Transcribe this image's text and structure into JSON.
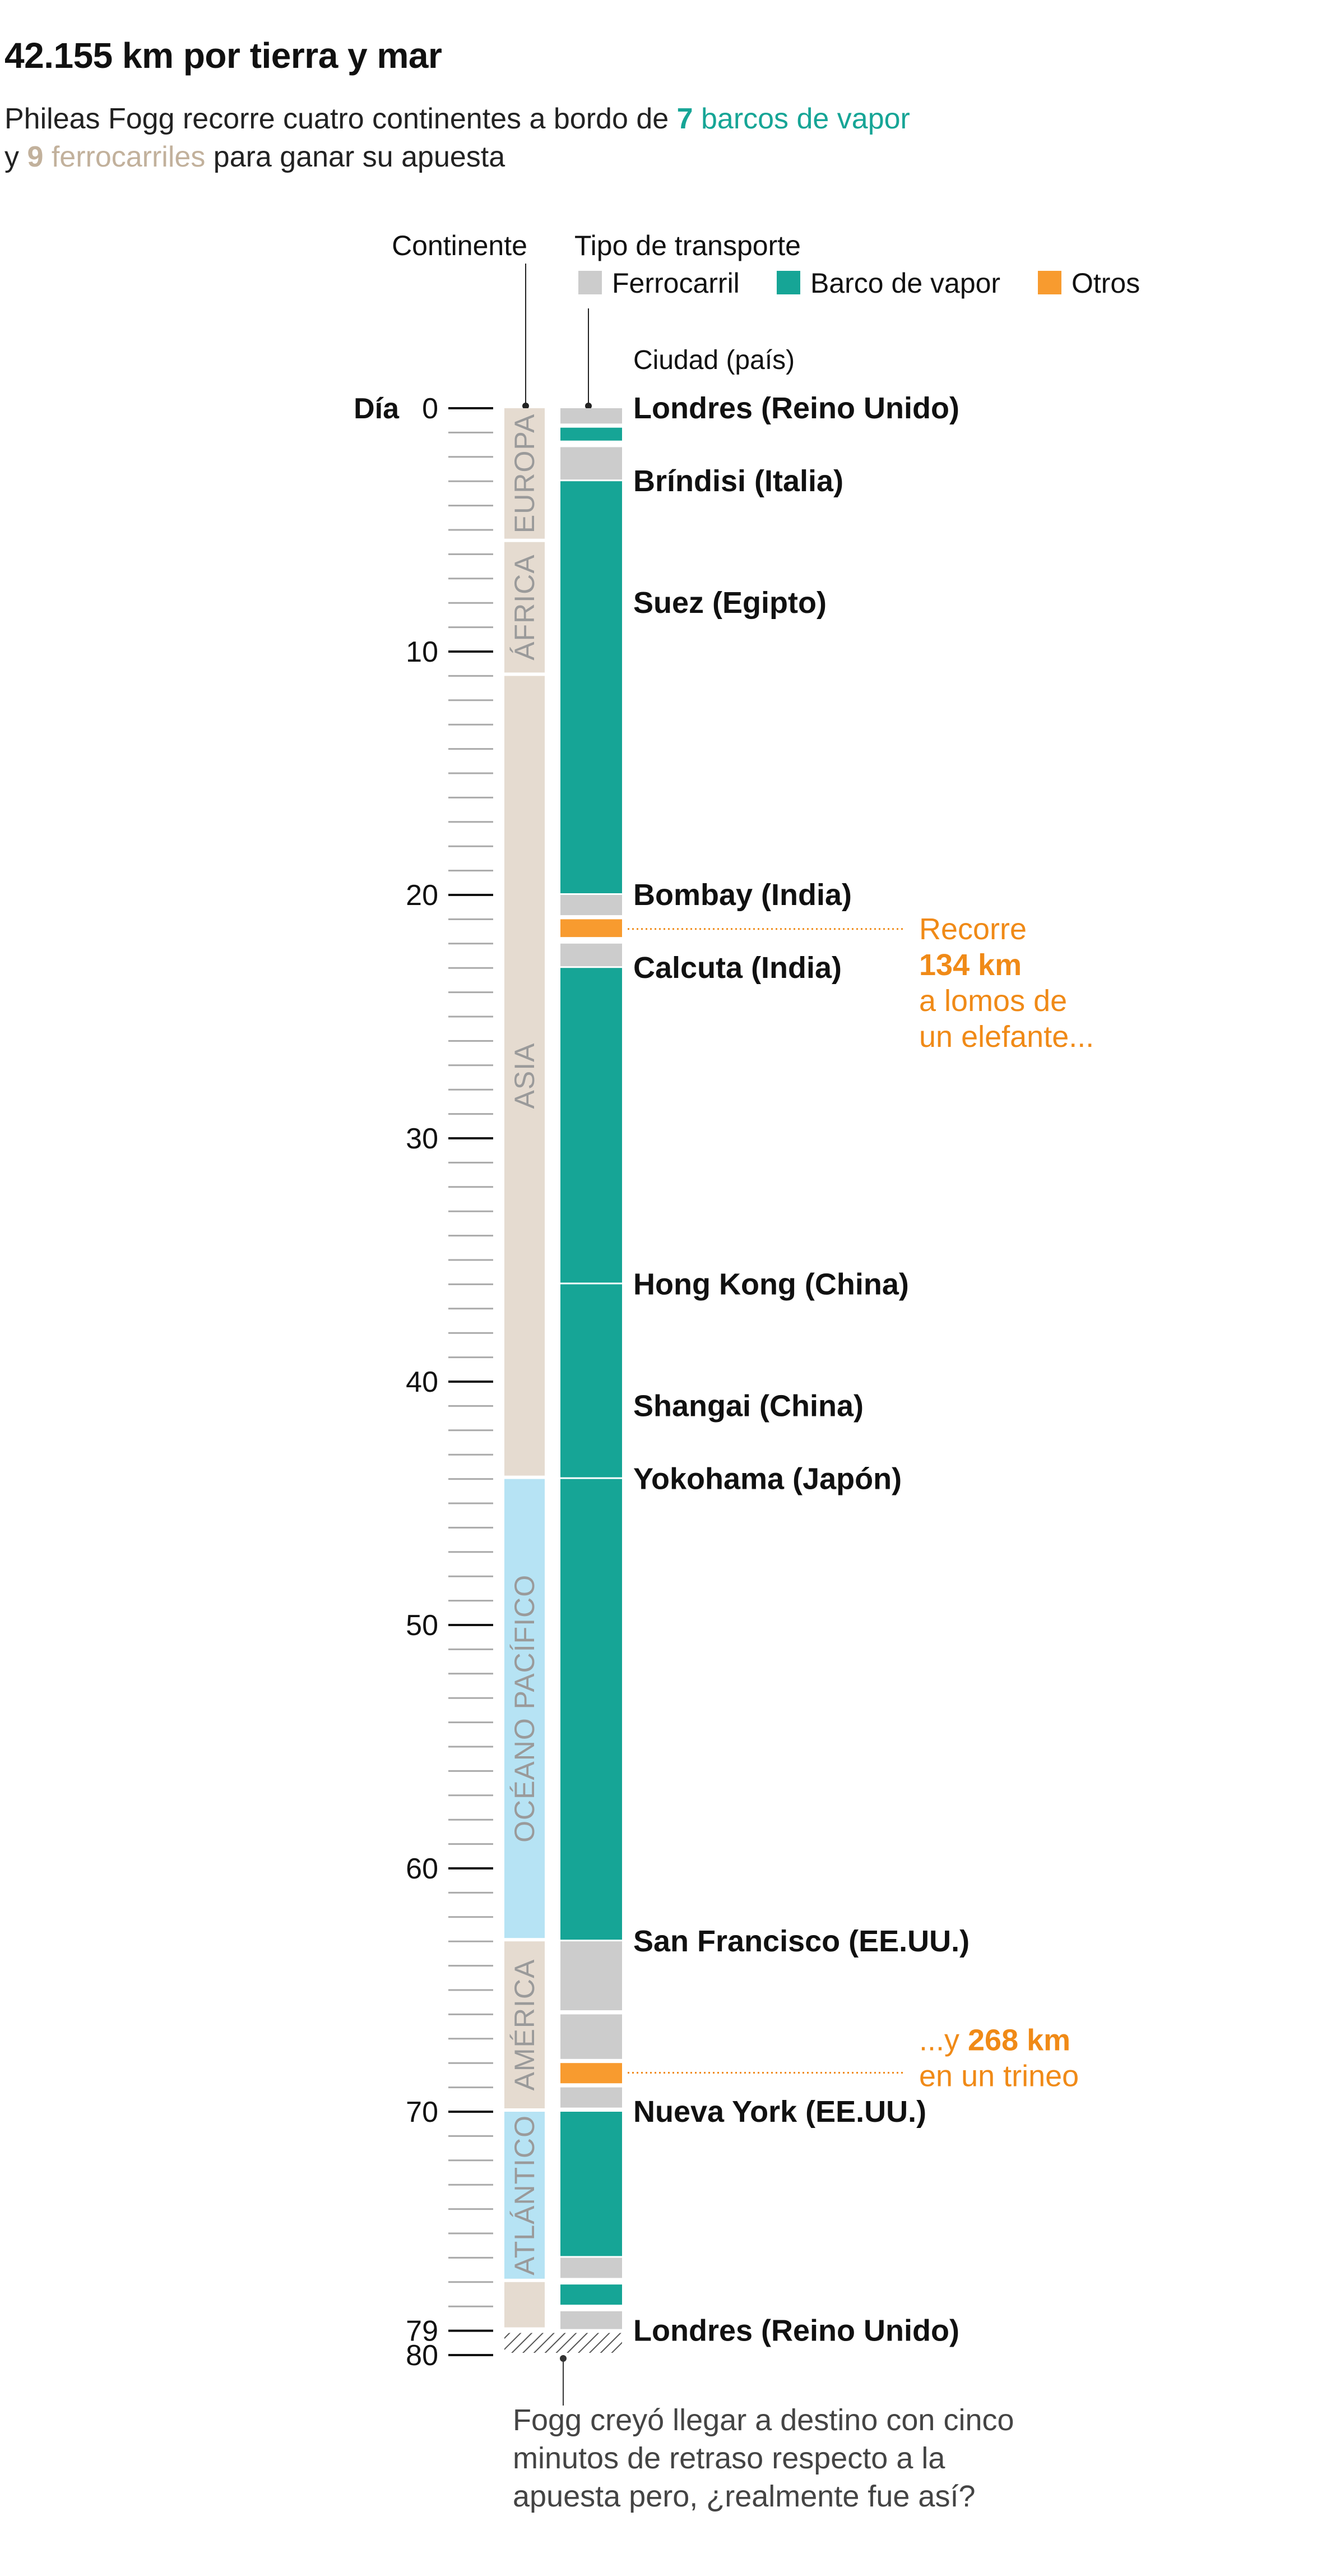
{
  "header": {
    "title": "42.155 km por tierra y mar",
    "subtitle_line1_pre": "Phileas Fogg recorre cuatro continentes a bordo de ",
    "subtitle_steam_count": "7",
    "subtitle_steam_text": " barcos de vapor",
    "subtitle_line2_pre": "y ",
    "subtitle_rail_count": "9",
    "subtitle_rail_text": " ferrocarriles",
    "subtitle_line2_post": " para ganar su apuesta"
  },
  "colors": {
    "steamship": "#16a596",
    "railway": "#cccccc",
    "other": "#f89b2f",
    "land": "#e5dbd0",
    "ocean": "#b6e3f4",
    "continent_text": "#9a9a9a",
    "annotation": "#f08a17"
  },
  "chart_data": {
    "type": "timeline",
    "axis": {
      "label": "Día",
      "min": 0,
      "max": 80,
      "major_ticks": [
        0,
        10,
        20,
        30,
        40,
        50,
        60,
        70,
        79,
        80
      ],
      "minor_step": 1
    },
    "headers": {
      "continent": "Continente",
      "transport": "Tipo de transporte",
      "city": "Ciudad (país)"
    },
    "legend": [
      {
        "key": "railway",
        "label": "Ferrocarril"
      },
      {
        "key": "steamship",
        "label": "Barco de vapor"
      },
      {
        "key": "other",
        "label": "Otros"
      }
    ],
    "continents": [
      {
        "name": "EUROPA",
        "start": 0,
        "end": 5.5,
        "kind": "land"
      },
      {
        "name": "ÁFRICA",
        "start": 5.5,
        "end": 11,
        "kind": "land"
      },
      {
        "name": "ASIA",
        "start": 11,
        "end": 44,
        "kind": "land"
      },
      {
        "name": "OCÉANO PACÍFICO",
        "start": 44,
        "end": 63,
        "kind": "ocean"
      },
      {
        "name": "AMÉRICA",
        "start": 63,
        "end": 70,
        "kind": "land"
      },
      {
        "name": "ATLÁNTICO",
        "start": 70,
        "end": 77,
        "kind": "ocean"
      },
      {
        "name": "",
        "start": 77,
        "end": 79,
        "kind": "land"
      }
    ],
    "segments": [
      {
        "type": "railway",
        "start": 0,
        "end": 0.7
      },
      {
        "type": "steamship",
        "start": 0.8,
        "end": 1.4
      },
      {
        "type": "railway",
        "start": 1.6,
        "end": 3
      },
      {
        "type": "steamship",
        "start": 3,
        "end": 20
      },
      {
        "type": "railway",
        "start": 20,
        "end": 20.9
      },
      {
        "type": "other",
        "start": 21,
        "end": 21.8
      },
      {
        "type": "railway",
        "start": 22,
        "end": 23
      },
      {
        "type": "steamship",
        "start": 23,
        "end": 36
      },
      {
        "type": "steamship",
        "start": 36,
        "end": 44
      },
      {
        "type": "steamship",
        "start": 44,
        "end": 63
      },
      {
        "type": "railway",
        "start": 63,
        "end": 65.9
      },
      {
        "type": "railway",
        "start": 66,
        "end": 67.9
      },
      {
        "type": "other",
        "start": 68,
        "end": 68.9
      },
      {
        "type": "railway",
        "start": 69,
        "end": 69.9
      },
      {
        "type": "steamship",
        "start": 70,
        "end": 76
      },
      {
        "type": "railway",
        "start": 76,
        "end": 76.9
      },
      {
        "type": "steamship",
        "start": 77.1,
        "end": 78
      },
      {
        "type": "railway",
        "start": 78.2,
        "end": 79
      }
    ],
    "cities": [
      {
        "name": "Londres (Reino Unido)",
        "day": 0
      },
      {
        "name": "Bríndisi (Italia)",
        "day": 3
      },
      {
        "name": "Suez (Egipto)",
        "day": 8
      },
      {
        "name": "Bombay (India)",
        "day": 20
      },
      {
        "name": "Calcuta (India)",
        "day": 23
      },
      {
        "name": "Hong Kong (China)",
        "day": 36
      },
      {
        "name": "Shangai (China)",
        "day": 41
      },
      {
        "name": "Yokohama (Japón)",
        "day": 44
      },
      {
        "name": "San Francisco (EE.UU.)",
        "day": 63
      },
      {
        "name": "Nueva York (EE.UU.)",
        "day": 70
      },
      {
        "name": "Londres (Reino Unido)",
        "day": 79
      }
    ],
    "annotations": [
      {
        "day": 21.4,
        "lines": [
          "Recorre",
          "134 km",
          "a lomos de",
          "un elefante..."
        ],
        "bold_line": 1
      },
      {
        "day": 68.4,
        "lines_parts": [
          [
            "...y ",
            "268 km"
          ],
          [
            "en un trineo"
          ]
        ]
      }
    ],
    "footnote": {
      "day": 80,
      "lines": [
        "Fogg creyó llegar a destino con cinco",
        "minutos de retraso respecto a la",
        "apuesta pero, ¿realmente fue así?"
      ]
    }
  }
}
